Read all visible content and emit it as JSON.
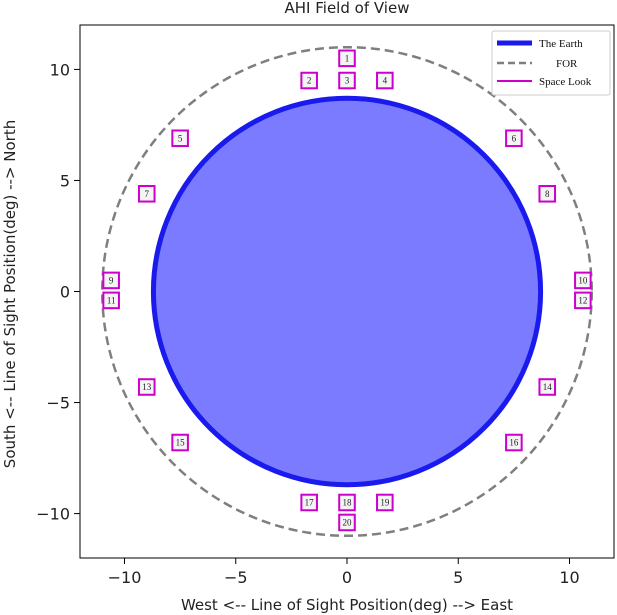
{
  "chart_data": {
    "type": "scatter",
    "title": "AHI Field of View",
    "xlabel": "West <-- Line of Sight Position(deg) --> East",
    "ylabel": "South <-- Line of Sight Position(deg) --> North",
    "xlim": [
      -12.0,
      12.0
    ],
    "ylim": [
      -12.0,
      12.0
    ],
    "xticks": [
      -10,
      -5,
      0,
      5,
      10
    ],
    "yticks": [
      -10,
      -5,
      0,
      5,
      10
    ],
    "xtick_labels": [
      "−10",
      "−5",
      "0",
      "5",
      "10"
    ],
    "ytick_labels": [
      "−10",
      "−5",
      "0",
      "5",
      "10"
    ],
    "grid": false,
    "earth": {
      "center": [
        0,
        0
      ],
      "radius": 8.7,
      "fill": "#7b7bff",
      "edge": "#1a1aee"
    },
    "field_of_regard": {
      "center": [
        0,
        0
      ],
      "radius": 11.0,
      "color": "#7f7f7f",
      "style": "dashed"
    },
    "space_look": {
      "color": "#cc00cc",
      "half_size_deg": 0.35,
      "positions": [
        {
          "label": "1",
          "x": 0.0,
          "y": 10.5
        },
        {
          "label": "2",
          "x": -1.7,
          "y": 9.5
        },
        {
          "label": "3",
          "x": 0.0,
          "y": 9.5
        },
        {
          "label": "4",
          "x": 1.7,
          "y": 9.5
        },
        {
          "label": "5",
          "x": -7.5,
          "y": 6.9
        },
        {
          "label": "6",
          "x": 7.5,
          "y": 6.9
        },
        {
          "label": "7",
          "x": -9.0,
          "y": 4.4
        },
        {
          "label": "8",
          "x": 9.0,
          "y": 4.4
        },
        {
          "label": "9",
          "x": -10.6,
          "y": 0.5
        },
        {
          "label": "10",
          "x": 10.6,
          "y": 0.5
        },
        {
          "label": "11",
          "x": -10.6,
          "y": -0.4
        },
        {
          "label": "12",
          "x": 10.6,
          "y": -0.4
        },
        {
          "label": "13",
          "x": -9.0,
          "y": -4.3
        },
        {
          "label": "14",
          "x": 9.0,
          "y": -4.3
        },
        {
          "label": "15",
          "x": -7.5,
          "y": -6.8
        },
        {
          "label": "16",
          "x": 7.5,
          "y": -6.8
        },
        {
          "label": "17",
          "x": -1.7,
          "y": -9.5
        },
        {
          "label": "18",
          "x": 0.0,
          "y": -9.5
        },
        {
          "label": "19",
          "x": 1.7,
          "y": -9.5
        },
        {
          "label": "20",
          "x": 0.0,
          "y": -10.4
        }
      ]
    },
    "legend": {
      "placement": "upper-right",
      "entries": [
        {
          "label": "The Earth",
          "color": "#1a1aee",
          "style": "solid-thick"
        },
        {
          "label": "FOR",
          "color": "#7f7f7f",
          "style": "dashed"
        },
        {
          "label": "Space Look",
          "color": "#cc00cc",
          "style": "solid"
        }
      ]
    }
  }
}
